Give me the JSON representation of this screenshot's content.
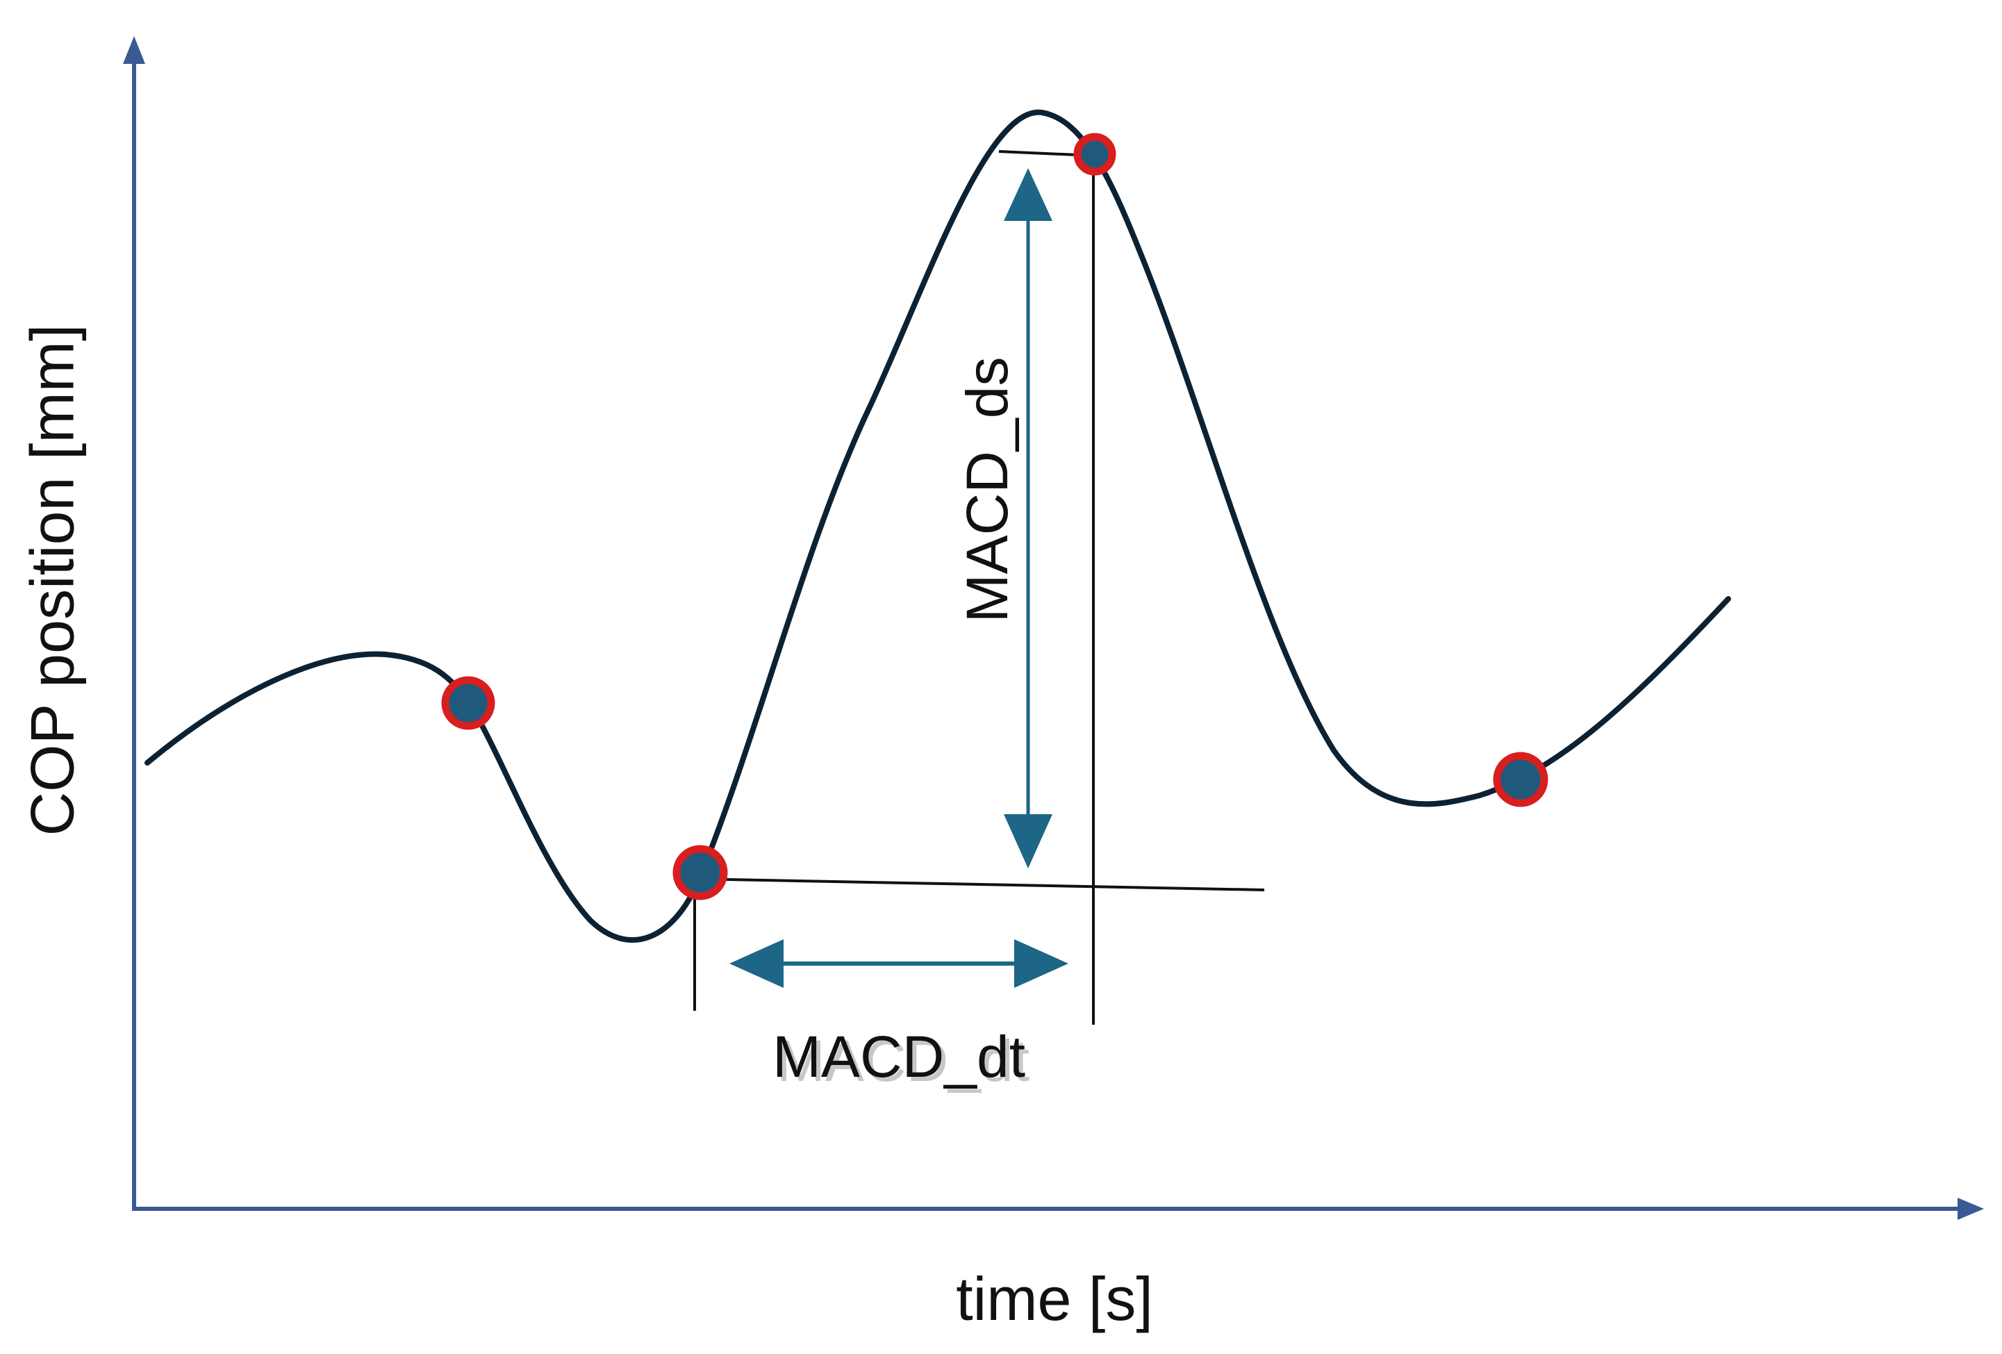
{
  "axes": {
    "x_label": "time [s]",
    "y_label": "COP position [mm]"
  },
  "annotations": {
    "ds_label": "MACD_ds",
    "dt_label": "MACD_dt"
  },
  "colors": {
    "axis": "#3a5a95",
    "curve": "#0c2233",
    "marker_fill": "#1f5a7d",
    "marker_ring": "#d81e1e",
    "arrow": "#1d6688",
    "guide_line": "#111111"
  },
  "markers": [
    {
      "id": "marker-1",
      "role": "local extremum"
    },
    {
      "id": "marker-2",
      "role": "start point"
    },
    {
      "id": "marker-3",
      "role": "peak point"
    },
    {
      "id": "marker-4",
      "role": "local extremum"
    }
  ]
}
